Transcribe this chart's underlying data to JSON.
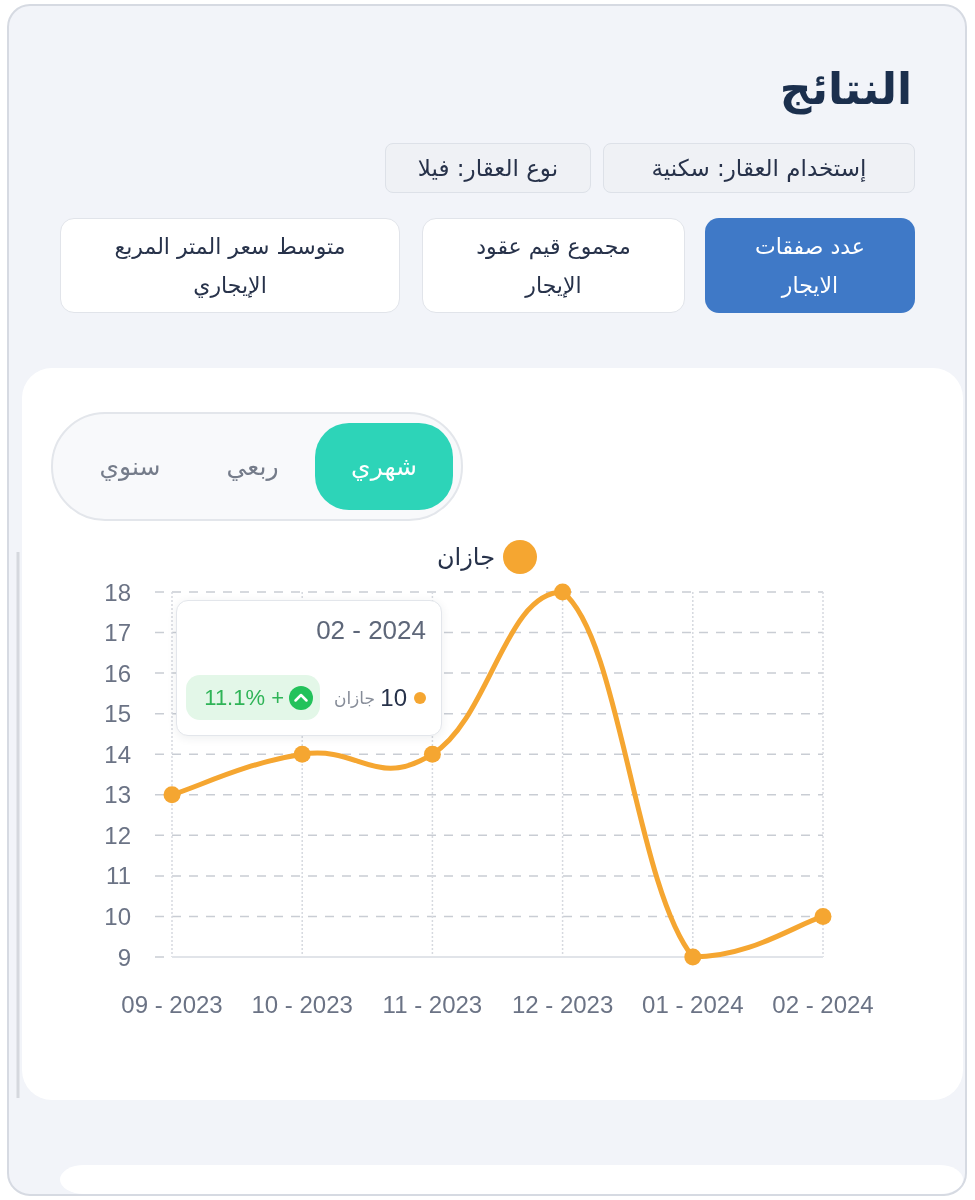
{
  "chart_data": {
    "type": "line",
    "title": "النتائج",
    "annotations": [
      "إستخدام العقار: سكنية",
      "نوع العقار: فيلا",
      "عدد صفقات الايجار",
      "مجموع قيم عقود الإيجار",
      "متوسط سعر المتر المربع الإيجاري",
      "شهري",
      "ربعي",
      "سنوي",
      "02 - 2024",
      "10",
      "11.1% +"
    ],
    "categories": [
      "09 - 2023",
      "10 - 2023",
      "11 - 2023",
      "12 - 2023",
      "01 - 2024",
      "02 - 2024"
    ],
    "series": [
      {
        "name": "جازان",
        "color": "#f5a631",
        "values": [
          13,
          14,
          14,
          18,
          9,
          10
        ]
      }
    ],
    "ylim": [
      9,
      18
    ],
    "yticks": [
      9,
      10,
      11,
      12,
      13,
      14,
      15,
      16,
      17,
      18
    ],
    "grid": true,
    "legend": "top",
    "marker": "circle"
  }
}
